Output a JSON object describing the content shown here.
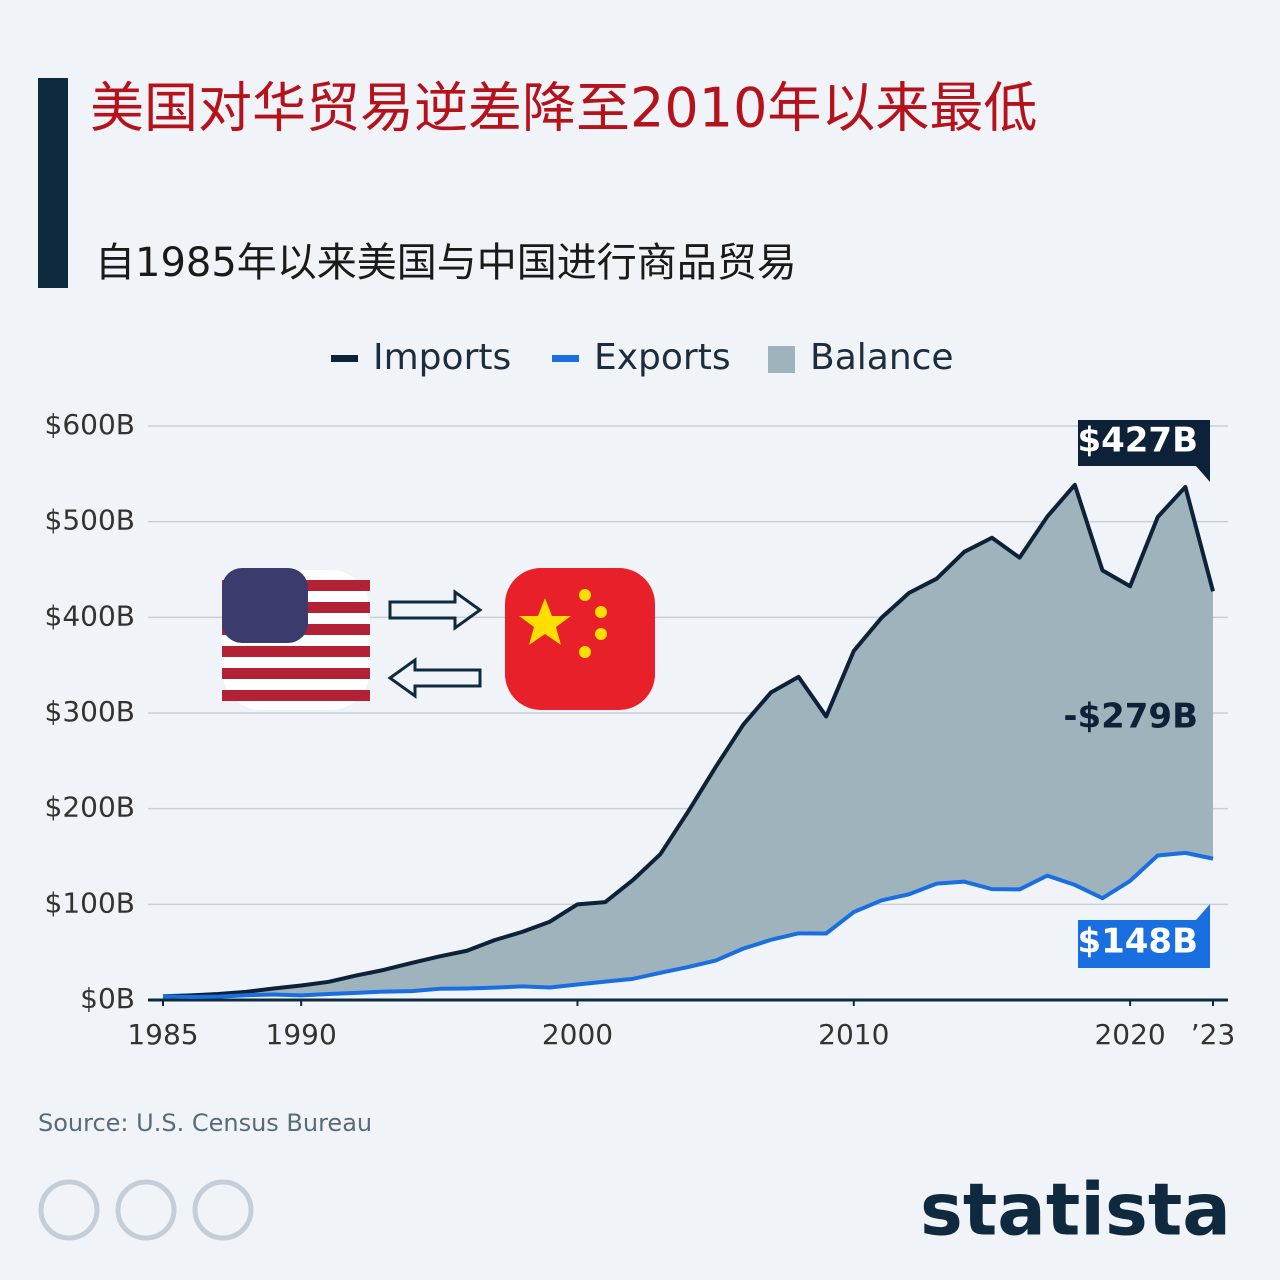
{
  "chart_data": {
    "type": "area_between",
    "title": "美国对华贸易逆差降至2010年以来最低",
    "subtitle": "自1985年以来美国与中国进行商品贸易",
    "x": [
      1985,
      1986,
      1987,
      1988,
      1989,
      1990,
      1991,
      1992,
      1993,
      1994,
      1995,
      1996,
      1997,
      1998,
      1999,
      2000,
      2001,
      2002,
      2003,
      2004,
      2005,
      2006,
      2007,
      2008,
      2009,
      2010,
      2011,
      2012,
      2013,
      2014,
      2015,
      2016,
      2017,
      2018,
      2019,
      2020,
      2021,
      2022,
      2023
    ],
    "series": [
      {
        "name": "Imports",
        "color": "#0d2238",
        "values": [
          3.9,
          4.8,
          6.3,
          8.5,
          12,
          15.2,
          19,
          25.7,
          31.5,
          38.8,
          45.5,
          51.5,
          62.6,
          71.2,
          81.8,
          100,
          102.3,
          125.2,
          152.4,
          196.7,
          243.5,
          287.8,
          321.4,
          337.8,
          296.4,
          364.9,
          399.4,
          425.6,
          440.4,
          468.5,
          483.2,
          462.4,
          505.2,
          538.5,
          449.1,
          432.5,
          504.9,
          536.3,
          427.2
        ]
      },
      {
        "name": "Exports",
        "color": "#1a6fe0",
        "values": [
          3.9,
          3.1,
          3.5,
          5.0,
          5.8,
          4.8,
          6.3,
          7.4,
          8.8,
          9.3,
          11.7,
          12.0,
          12.9,
          14.2,
          13.1,
          16.2,
          19.2,
          22.1,
          28.4,
          34.4,
          41.2,
          53.7,
          62.9,
          69.7,
          69.5,
          91.9,
          104.1,
          110.5,
          121.7,
          123.7,
          115.9,
          115.6,
          130.0,
          120.3,
          106.4,
          124.5,
          151.1,
          153.8,
          147.8
        ]
      }
    ],
    "fill_between": {
      "name": "Balance",
      "color": "#9fb3bc"
    },
    "annotations": [
      "$427B",
      "-$279B",
      "$148B"
    ],
    "xlim": [
      1985,
      2023
    ],
    "xticks": [
      1985,
      1990,
      2000,
      2010,
      2020,
      {
        "value": 2023,
        "label": "’23"
      }
    ],
    "ylim": [
      0,
      600
    ],
    "yticks": [
      {
        "value": 0,
        "label": "$0B"
      },
      {
        "value": 100,
        "label": "$100B"
      },
      {
        "value": 200,
        "label": "$200B"
      },
      {
        "value": 300,
        "label": "$300B"
      },
      {
        "value": 400,
        "label": "$400B"
      },
      {
        "value": 500,
        "label": "$500B"
      },
      {
        "value": 600,
        "label": "$600B"
      }
    ],
    "grid": true,
    "source": "Source: U.S. Census Bureau",
    "brand": "statista"
  }
}
